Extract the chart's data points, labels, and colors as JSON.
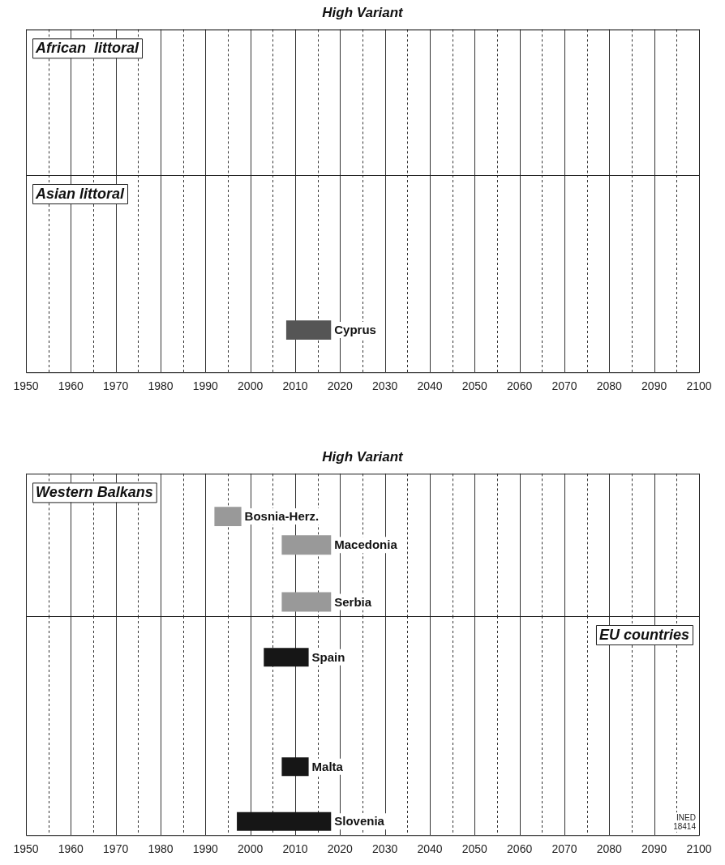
{
  "chart_data": [
    {
      "type": "other",
      "title": "High Variant",
      "annotations": [
        "African  littoral"
      ]
    },
    {
      "type": "bar",
      "orientation": "horizontal",
      "annotations": [
        "Asian littoral"
      ],
      "categories": [
        null,
        null,
        null,
        null,
        null,
        "Cyprus",
        null
      ],
      "base": [
        null,
        null,
        null,
        null,
        null,
        2008,
        null
      ],
      "values": [
        null,
        null,
        null,
        null,
        null,
        10,
        null
      ],
      "colors": [
        "#555555",
        "#555555",
        "#555555",
        "#555555",
        "#555555",
        "#555555",
        "#555555"
      ],
      "xlim": [
        1950,
        2100
      ],
      "xticks": [
        1950,
        {
          "value": 1955,
          "label": null
        },
        1960,
        {
          "value": 1965,
          "label": null
        },
        1970,
        {
          "value": 1975,
          "label": null
        },
        1980,
        {
          "value": 1985,
          "label": null
        },
        1990,
        {
          "value": 1995,
          "label": null
        },
        2000,
        {
          "value": 2005,
          "label": null
        },
        2010,
        {
          "value": 2015,
          "label": null
        },
        2020,
        {
          "value": 2025,
          "label": null
        },
        2030,
        {
          "value": 2035,
          "label": null
        },
        2040,
        {
          "value": 2045,
          "label": null
        },
        2050,
        {
          "value": 2055,
          "label": null
        },
        2060,
        {
          "value": 2065,
          "label": null
        },
        2070,
        {
          "value": 2075,
          "label": null
        },
        2080,
        {
          "value": 2085,
          "label": null
        },
        2090,
        {
          "value": 2095,
          "label": null
        },
        2100
      ],
      "grid": "x",
      "tick_labels": "x"
    },
    {
      "type": "bar",
      "orientation": "horizontal",
      "title": "High Variant",
      "annotations": [
        "Western Balkans"
      ],
      "categories": [
        null,
        "Bosnia-Herz.",
        "Macedonia",
        null,
        "Serbia"
      ],
      "base": [
        null,
        1992,
        2007,
        null,
        2007
      ],
      "values": [
        null,
        6,
        11,
        null,
        11
      ],
      "colors": [
        "#999999",
        "#999999",
        "#999999",
        "#999999",
        "#999999"
      ],
      "xlim": [
        1950,
        2100
      ],
      "xticks": [
        1950,
        {
          "value": 1955,
          "label": null
        },
        1960,
        {
          "value": 1965,
          "label": null
        },
        1970,
        {
          "value": 1975,
          "label": null
        },
        1980,
        {
          "value": 1985,
          "label": null
        },
        1990,
        {
          "value": 1995,
          "label": null
        },
        2000,
        {
          "value": 2005,
          "label": null
        },
        2010,
        {
          "value": 2015,
          "label": null
        },
        2020,
        {
          "value": 2025,
          "label": null
        },
        2030,
        {
          "value": 2035,
          "label": null
        },
        2040,
        {
          "value": 2045,
          "label": null
        },
        2050,
        {
          "value": 2055,
          "label": null
        },
        2060,
        {
          "value": 2065,
          "label": null
        },
        2070,
        {
          "value": 2075,
          "label": null
        },
        2080,
        {
          "value": 2085,
          "label": null
        },
        2090,
        {
          "value": 2095,
          "label": null
        },
        2100
      ],
      "grid": "x",
      "tick_labels": false
    },
    {
      "type": "bar",
      "orientation": "horizontal",
      "annotations": [
        "EU countries",
        "INED 18414"
      ],
      "categories": [
        null,
        "Spain",
        null,
        null,
        null,
        "Malta",
        null,
        "Slovenia"
      ],
      "base": [
        null,
        2003,
        null,
        null,
        null,
        2007,
        null,
        1997
      ],
      "values": [
        null,
        10,
        null,
        null,
        null,
        6,
        null,
        21
      ],
      "colors": [
        "#161616",
        "#161616",
        "#161616",
        "#161616",
        "#161616",
        "#161616",
        "#161616",
        "#161616"
      ],
      "xlim": [
        1950,
        2100
      ],
      "xticks": [
        1950,
        {
          "value": 1955,
          "label": null
        },
        1960,
        {
          "value": 1965,
          "label": null
        },
        1970,
        {
          "value": 1975,
          "label": null
        },
        1980,
        {
          "value": 1985,
          "label": null
        },
        1990,
        {
          "value": 1995,
          "label": null
        },
        2000,
        {
          "value": 2005,
          "label": null
        },
        2010,
        {
          "value": 2015,
          "label": null
        },
        2020,
        {
          "value": 2025,
          "label": null
        },
        2030,
        {
          "value": 2035,
          "label": null
        },
        2040,
        {
          "value": 2045,
          "label": null
        },
        2050,
        {
          "value": 2055,
          "label": null
        },
        2060,
        {
          "value": 2065,
          "label": null
        },
        2070,
        {
          "value": 2075,
          "label": null
        },
        2080,
        {
          "value": 2085,
          "label": null
        },
        2090,
        {
          "value": 2095,
          "label": null
        },
        2100
      ],
      "grid": "x",
      "tick_labels": "x"
    }
  ]
}
